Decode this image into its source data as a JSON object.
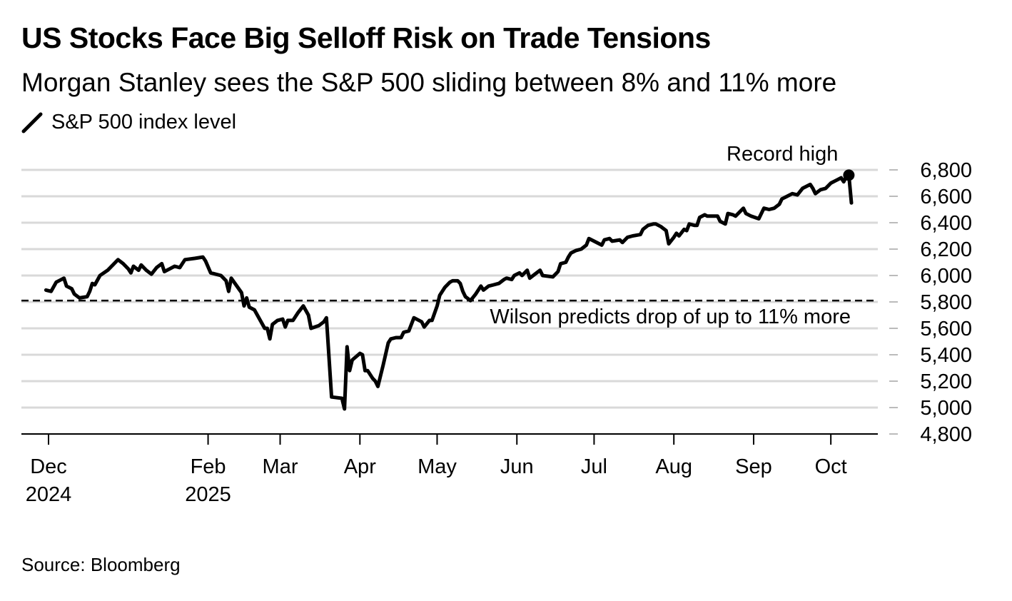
{
  "chart_data": {
    "type": "line",
    "title": "US Stocks Face Big Selloff Risk on Trade Tensions",
    "subtitle": "Morgan Stanley sees the S&P 500 sliding between 8% and 11% more",
    "legend": [
      {
        "name": "S&P 500 index level",
        "color": "#000000"
      }
    ],
    "source": "Source: Bloomberg",
    "ylim": [
      4800,
      6800
    ],
    "yticks": [
      {
        "value": 6800,
        "label": "6,800"
      },
      {
        "value": 6600,
        "label": "6,600"
      },
      {
        "value": 6400,
        "label": "6,400"
      },
      {
        "value": 6200,
        "label": "6,200"
      },
      {
        "value": 6000,
        "label": "6,000"
      },
      {
        "value": 5800,
        "label": "5,800"
      },
      {
        "value": 5600,
        "label": "5,600"
      },
      {
        "value": 5400,
        "label": "5,400"
      },
      {
        "value": 5200,
        "label": "5,200"
      },
      {
        "value": 5000,
        "label": "5,000"
      },
      {
        "value": 4800,
        "label": "4,800"
      }
    ],
    "xlim": [
      -4,
      310
    ],
    "xticks": [
      {
        "day": 0,
        "label": "Dec",
        "label2": "2024"
      },
      {
        "day": 62,
        "label": "Feb",
        "label2": "2025"
      },
      {
        "day": 90,
        "label": "Mar",
        "label2": ""
      },
      {
        "day": 121,
        "label": "Apr",
        "label2": ""
      },
      {
        "day": 151,
        "label": "May",
        "label2": ""
      },
      {
        "day": 182,
        "label": "Jun",
        "label2": ""
      },
      {
        "day": 212,
        "label": "Jul",
        "label2": ""
      },
      {
        "day": 243,
        "label": "Aug",
        "label2": ""
      },
      {
        "day": 274,
        "label": "Sep",
        "label2": ""
      },
      {
        "day": 304,
        "label": "Oct",
        "label2": ""
      }
    ],
    "series": [
      {
        "name": "S&P 500 index level",
        "x_unit": "days since Dec 1, 2024",
        "points": [
          [
            -1,
            5890
          ],
          [
            1,
            5880
          ],
          [
            3,
            5950
          ],
          [
            6,
            5980
          ],
          [
            7,
            5920
          ],
          [
            9,
            5900
          ],
          [
            10,
            5860
          ],
          [
            12,
            5830
          ],
          [
            15,
            5840
          ],
          [
            16,
            5880
          ],
          [
            17,
            5940
          ],
          [
            18,
            5930
          ],
          [
            20,
            6000
          ],
          [
            23,
            6040
          ],
          [
            25,
            6080
          ],
          [
            27,
            6120
          ],
          [
            29,
            6090
          ],
          [
            31,
            6050
          ],
          [
            32,
            6020
          ],
          [
            33,
            6070
          ],
          [
            35,
            6040
          ],
          [
            36,
            6080
          ],
          [
            38,
            6040
          ],
          [
            40,
            6010
          ],
          [
            42,
            6060
          ],
          [
            44,
            6090
          ],
          [
            45,
            6030
          ],
          [
            47,
            6050
          ],
          [
            49,
            6070
          ],
          [
            51,
            6060
          ],
          [
            53,
            6120
          ],
          [
            57,
            6130
          ],
          [
            60,
            6140
          ],
          [
            61,
            6110
          ],
          [
            63,
            6020
          ],
          [
            67,
            6000
          ],
          [
            69,
            5960
          ],
          [
            70,
            5880
          ],
          [
            71,
            5980
          ],
          [
            75,
            5870
          ],
          [
            76,
            5770
          ],
          [
            77,
            5830
          ],
          [
            78,
            5760
          ],
          [
            80,
            5740
          ],
          [
            84,
            5600
          ],
          [
            85,
            5600
          ],
          [
            86,
            5520
          ],
          [
            87,
            5630
          ],
          [
            89,
            5660
          ],
          [
            91,
            5670
          ],
          [
            92,
            5610
          ],
          [
            93,
            5660
          ],
          [
            95,
            5660
          ],
          [
            97,
            5720
          ],
          [
            99,
            5770
          ],
          [
            101,
            5700
          ],
          [
            102,
            5600
          ],
          [
            105,
            5620
          ],
          [
            107,
            5650
          ],
          [
            108,
            5680
          ],
          [
            110,
            5080
          ],
          [
            114,
            5070
          ],
          [
            115,
            4990
          ],
          [
            116,
            5460
          ],
          [
            117,
            5280
          ],
          [
            118,
            5360
          ],
          [
            121,
            5410
          ],
          [
            122,
            5400
          ],
          [
            123,
            5280
          ],
          [
            124,
            5280
          ],
          [
            126,
            5220
          ],
          [
            127,
            5200
          ],
          [
            128,
            5160
          ],
          [
            130,
            5320
          ],
          [
            132,
            5490
          ],
          [
            133,
            5520
          ],
          [
            135,
            5530
          ],
          [
            137,
            5530
          ],
          [
            138,
            5570
          ],
          [
            140,
            5580
          ],
          [
            142,
            5680
          ],
          [
            145,
            5650
          ],
          [
            146,
            5610
          ],
          [
            148,
            5660
          ],
          [
            149,
            5660
          ],
          [
            151,
            5770
          ],
          [
            152,
            5850
          ],
          [
            154,
            5910
          ],
          [
            156,
            5950
          ],
          [
            157,
            5960
          ],
          [
            159,
            5960
          ],
          [
            160,
            5940
          ],
          [
            161,
            5880
          ],
          [
            162,
            5840
          ],
          [
            164,
            5810
          ],
          [
            166,
            5860
          ],
          [
            168,
            5920
          ],
          [
            169,
            5890
          ],
          [
            171,
            5920
          ],
          [
            173,
            5930
          ],
          [
            175,
            5940
          ],
          [
            177,
            5970
          ],
          [
            178,
            5980
          ],
          [
            180,
            5970
          ],
          [
            181,
            6000
          ],
          [
            183,
            6020
          ],
          [
            184,
            6000
          ],
          [
            186,
            6040
          ],
          [
            187,
            5980
          ],
          [
            189,
            6010
          ],
          [
            191,
            6040
          ],
          [
            192,
            6000
          ],
          [
            196,
            5990
          ],
          [
            198,
            6030
          ],
          [
            199,
            6090
          ],
          [
            201,
            6100
          ],
          [
            202,
            6140
          ],
          [
            203,
            6170
          ],
          [
            205,
            6190
          ],
          [
            207,
            6200
          ],
          [
            209,
            6230
          ],
          [
            210,
            6280
          ],
          [
            212,
            6260
          ],
          [
            215,
            6230
          ],
          [
            216,
            6270
          ],
          [
            218,
            6280
          ],
          [
            219,
            6260
          ],
          [
            222,
            6270
          ],
          [
            223,
            6250
          ],
          [
            225,
            6290
          ],
          [
            227,
            6300
          ],
          [
            230,
            6310
          ],
          [
            231,
            6350
          ],
          [
            233,
            6380
          ],
          [
            235,
            6390
          ],
          [
            236,
            6390
          ],
          [
            238,
            6370
          ],
          [
            240,
            6340
          ],
          [
            241,
            6240
          ],
          [
            243,
            6290
          ],
          [
            244,
            6320
          ],
          [
            245,
            6300
          ],
          [
            247,
            6350
          ],
          [
            248,
            6340
          ],
          [
            249,
            6390
          ],
          [
            251,
            6380
          ],
          [
            252,
            6380
          ],
          [
            253,
            6440
          ],
          [
            255,
            6460
          ],
          [
            256,
            6450
          ],
          [
            258,
            6450
          ],
          [
            260,
            6450
          ],
          [
            261,
            6410
          ],
          [
            263,
            6390
          ],
          [
            264,
            6470
          ],
          [
            266,
            6460
          ],
          [
            267,
            6450
          ],
          [
            269,
            6490
          ],
          [
            270,
            6510
          ],
          [
            271,
            6470
          ],
          [
            273,
            6450
          ],
          [
            276,
            6430
          ],
          [
            278,
            6510
          ],
          [
            280,
            6500
          ],
          [
            282,
            6510
          ],
          [
            284,
            6540
          ],
          [
            285,
            6580
          ],
          [
            287,
            6600
          ],
          [
            289,
            6620
          ],
          [
            291,
            6610
          ],
          [
            293,
            6660
          ],
          [
            296,
            6690
          ],
          [
            297,
            6660
          ],
          [
            298,
            6620
          ],
          [
            300,
            6650
          ],
          [
            302,
            6660
          ],
          [
            304,
            6700
          ],
          [
            306,
            6720
          ],
          [
            308,
            6740
          ],
          [
            309,
            6710
          ],
          [
            310,
            6750
          ],
          [
            311,
            6760
          ],
          [
            312,
            6550
          ]
        ]
      }
    ],
    "annotations": {
      "record_high": {
        "label": "Record high",
        "day": 311,
        "value": 6760
      },
      "wilson": {
        "label": "Wilson predicts drop of up to 11% more",
        "value": 5810
      }
    }
  }
}
